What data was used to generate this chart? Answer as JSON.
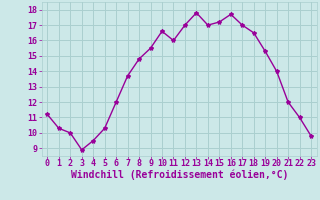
{
  "x": [
    0,
    1,
    2,
    3,
    4,
    5,
    6,
    7,
    8,
    9,
    10,
    11,
    12,
    13,
    14,
    15,
    16,
    17,
    18,
    19,
    20,
    21,
    22,
    23
  ],
  "y": [
    11.2,
    10.3,
    10.0,
    8.9,
    9.5,
    10.3,
    12.0,
    13.7,
    14.8,
    15.5,
    16.6,
    16.0,
    17.0,
    17.8,
    17.0,
    17.2,
    17.7,
    17.0,
    16.5,
    15.3,
    14.0,
    12.0,
    11.0,
    9.8
  ],
  "line_color": "#990099",
  "marker": "*",
  "marker_size": 3,
  "bg_color": "#cce8e8",
  "grid_color": "#aacfcf",
  "xlabel": "Windchill (Refroidissement éolien,°C)",
  "xlabel_color": "#990099",
  "ylim": [
    8.5,
    18.5
  ],
  "xlim": [
    -0.5,
    23.5
  ],
  "yticks": [
    9,
    10,
    11,
    12,
    13,
    14,
    15,
    16,
    17,
    18
  ],
  "xticks": [
    0,
    1,
    2,
    3,
    4,
    5,
    6,
    7,
    8,
    9,
    10,
    11,
    12,
    13,
    14,
    15,
    16,
    17,
    18,
    19,
    20,
    21,
    22,
    23
  ],
  "tick_label_color": "#990099",
  "tick_label_fontsize": 6,
  "xlabel_fontsize": 7,
  "line_width": 1.0
}
